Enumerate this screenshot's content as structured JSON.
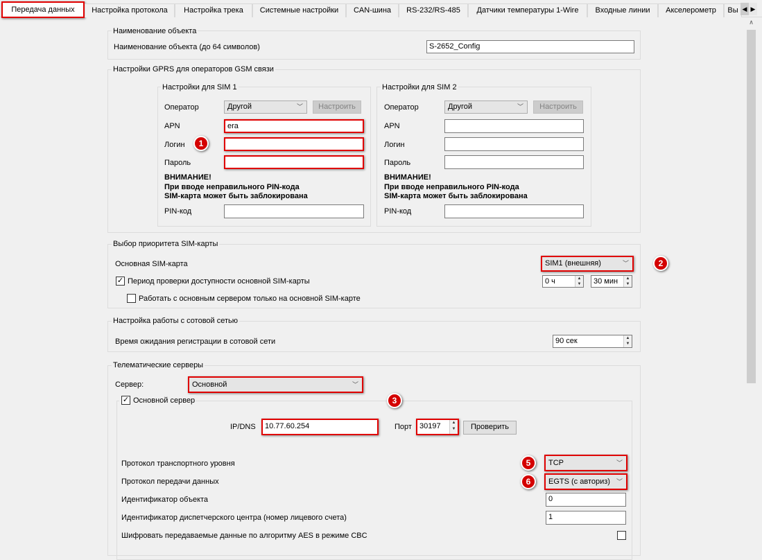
{
  "tabs": [
    "Передача данных",
    "Настройка протокола",
    "Настройка трека",
    "Системные настройки",
    "CAN-шина",
    "RS-232/RS-485",
    "Датчики температуры 1-Wire",
    "Входные линии",
    "Акселерометр",
    "Вы"
  ],
  "object": {
    "title": "Наименование объекта",
    "label": "Наименование объекта (до 64 символов)",
    "value": "S-2652_Config"
  },
  "gprs": {
    "title": "Настройки GPRS для операторов GSM связи",
    "sim1": {
      "title": "Настройки для SIM 1",
      "operator_label": "Оператор",
      "operator": "Другой",
      "configure": "Настроить",
      "apn_label": "APN",
      "apn": "era",
      "login_label": "Логин",
      "login": "",
      "password_label": "Пароль",
      "password": "",
      "warn1": "ВНИМАНИЕ!",
      "warn2": "При вводе неправильного PIN-кода",
      "warn3": "SIM-карта может быть заблокирована",
      "pin_label": "PIN-код",
      "pin": ""
    },
    "sim2": {
      "title": "Настройки для SIM 2",
      "operator_label": "Оператор",
      "operator": "Другой",
      "configure": "Настроить",
      "apn_label": "APN",
      "apn": "",
      "login_label": "Логин",
      "login": "",
      "password_label": "Пароль",
      "password": "",
      "warn1": "ВНИМАНИЕ!",
      "warn2": "При вводе неправильного PIN-кода",
      "warn3": "SIM-карта может быть заблокирована",
      "pin_label": "PIN-код",
      "pin": ""
    }
  },
  "simprio": {
    "title": "Выбор приоритета SIM-карты",
    "main_label": "Основная SIM-карта",
    "main": "SIM1 (внешняя)",
    "check_label": "Период проверки доступности основной SIM-карты",
    "check": true,
    "hours": "0 ч",
    "minutes": "30 мин",
    "only_label": "Работать с основным сервером только на основной SIM-карте",
    "only": false
  },
  "cell": {
    "title": "Настройка работы с сотовой сетью",
    "wait_label": "Время ожидания регистрации в сотовой сети",
    "wait": "90 сек"
  },
  "tele": {
    "title": "Телематические серверы",
    "server_label": "Сервер:",
    "server": "Основной",
    "main_label": "Основной сервер",
    "main_checked": true,
    "ip_label": "IP/DNS",
    "ip": "10.77.60.254",
    "port_label": "Порт",
    "port": "30197",
    "check_btn": "Проверить",
    "transport_label": "Протокол транспортного уровня",
    "transport": "TCP",
    "proto_label": "Протокол передачи данных",
    "proto": "EGTS (с авториз)",
    "objid_label": "Идентификатор объекта",
    "objid": "0",
    "dispid_label": "Идентификатор диспетчерского центра (номер лицевого счета)",
    "dispid": "1",
    "aes_label": "Шифровать передаваемые данные по алгоритму AES в режиме CBC",
    "aes": false
  },
  "badges": [
    "1",
    "2",
    "3",
    "5",
    "6"
  ],
  "colors": {
    "highlight": "#e00000",
    "badge": "#d40000"
  }
}
